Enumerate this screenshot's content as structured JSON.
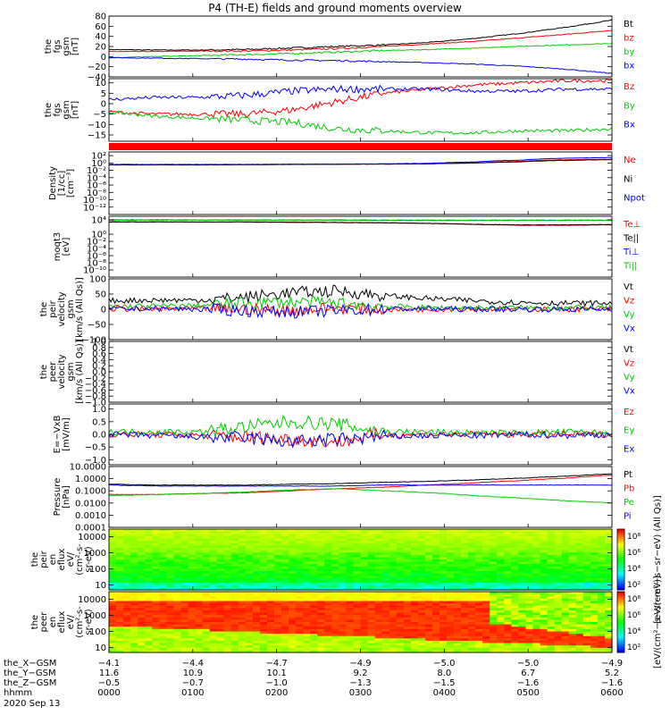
{
  "title": "P4 (TH-E) fields and ground moments overview",
  "colors": {
    "black": "#000000",
    "red": "#ff0000",
    "green": "#00cc00",
    "blue": "#0000ff"
  },
  "chart_data": [
    {
      "id": "fgs-gsm",
      "type": "line",
      "ylabel": [
        "the",
        "fgs",
        "gsm",
        "[nT]"
      ],
      "ylim": [
        -40,
        80
      ],
      "yticks": [
        "80",
        "60",
        "40",
        "20",
        "0",
        "−20",
        "−40"
      ],
      "ytick_values": [
        80,
        60,
        40,
        20,
        0,
        -20,
        -40
      ],
      "series": [
        {
          "name": "Bt",
          "color": "black",
          "values": [
            14,
            13,
            13,
            14,
            17,
            20,
            23,
            28,
            36,
            46,
            58,
            72
          ]
        },
        {
          "name": "bz",
          "color": "red",
          "values": [
            10,
            10,
            11,
            11,
            13,
            16,
            20,
            25,
            30,
            37,
            44,
            52
          ]
        },
        {
          "name": "by",
          "color": "green",
          "values": [
            -2,
            0,
            2,
            4,
            6,
            9,
            12,
            14,
            17,
            20,
            23,
            26
          ]
        },
        {
          "name": "bx",
          "color": "blue",
          "values": [
            -2,
            -3,
            -4,
            -5,
            -7,
            -8,
            -10,
            -12,
            -15,
            -19,
            -25,
            -33
          ]
        }
      ]
    },
    {
      "id": "fgs-gsm-zoom",
      "type": "line",
      "ylabel": [
        "the",
        "fgs",
        "gsm",
        "[nT]"
      ],
      "ylim": [
        -18,
        12
      ],
      "yticks": [
        "10",
        "5",
        "0",
        "−5",
        "−10",
        "−15"
      ],
      "ytick_values": [
        10,
        5,
        0,
        -5,
        -10,
        -15
      ],
      "series": [
        {
          "name": "Bz",
          "color": "red",
          "values": [
            -4,
            -5,
            -5,
            -5,
            -3,
            1,
            5,
            7,
            9,
            10,
            11,
            11
          ]
        },
        {
          "name": "By",
          "color": "green",
          "values": [
            -4,
            -6,
            -7,
            -8,
            -9,
            -12,
            -13,
            -14,
            -14,
            -13,
            -13,
            -12
          ]
        },
        {
          "name": "Bx",
          "color": "blue",
          "values": [
            2,
            3,
            3,
            4,
            6,
            7,
            7,
            7,
            6,
            6,
            7,
            7
          ]
        }
      ]
    },
    {
      "id": "density",
      "type": "line",
      "yscale": "log",
      "ylabel": [
        "Density",
        "[1/cc]",
        "[cm⁻³]"
      ],
      "ylim": [
        1e-14,
        1000.0
      ],
      "yticks": [
        "10²",
        "10⁰",
        "10⁻²",
        "10⁻⁴",
        "10⁻⁶",
        "10⁻⁸",
        "10⁻¹⁰",
        "10⁻¹²"
      ],
      "ytick_values": [
        100,
        1,
        0.01,
        0.0001,
        1e-06,
        1e-08,
        1e-10,
        1e-12
      ],
      "series": [
        {
          "name": "Ne",
          "color": "red",
          "values": [
            0.3,
            0.3,
            0.3,
            0.35,
            0.4,
            0.45,
            0.5,
            0.6,
            1,
            3,
            8,
            10
          ]
        },
        {
          "name": "Ni",
          "color": "black",
          "values": [
            0.3,
            0.3,
            0.3,
            0.35,
            0.4,
            0.45,
            0.5,
            0.6,
            1,
            2,
            5,
            8
          ]
        },
        {
          "name": "Npot",
          "color": "blue",
          "values": [
            0.4,
            0.4,
            0.4,
            0.4,
            0.5,
            0.5,
            0.6,
            0.8,
            2,
            6,
            20,
            30
          ]
        }
      ]
    },
    {
      "id": "temperature",
      "type": "line",
      "yscale": "log",
      "ylabel": [
        "moqt3",
        "[eV]"
      ],
      "ylim": [
        1e-12,
        100000.0
      ],
      "yticks": [
        "10⁴",
        "10⁰",
        "10⁻²",
        "10⁻⁴",
        "10⁻⁶",
        "10⁻⁸",
        "10⁻¹⁰"
      ],
      "ytick_values": [
        10000,
        1,
        0.01,
        0.0001,
        1e-06,
        1e-08,
        1e-10
      ],
      "series": [
        {
          "name": "Te⊥",
          "color": "red",
          "values": [
            3000,
            3000,
            2500,
            3000,
            2500,
            2000,
            1500,
            1000,
            500,
            300,
            300,
            400
          ]
        },
        {
          "name": "Te||",
          "color": "black",
          "values": [
            2500,
            2500,
            2500,
            2500,
            2000,
            1800,
            1500,
            1000,
            600,
            400,
            400,
            500
          ]
        },
        {
          "name": "Ti⊥",
          "color": "blue",
          "values": [
            10000,
            10000,
            9000,
            9000,
            9000,
            9000,
            8000,
            8000,
            8000,
            8000,
            8000,
            8000
          ]
        },
        {
          "name": "Ti||",
          "color": "green",
          "values": [
            8000,
            8000,
            8000,
            8000,
            8000,
            8000,
            7000,
            7000,
            7000,
            7000,
            7000,
            7000
          ]
        }
      ]
    },
    {
      "id": "peir-velocity",
      "type": "line",
      "ylabel": [
        "the",
        "peir",
        "velocity",
        "gsm",
        "[km/s (All Qs)]"
      ],
      "ylim": [
        -100,
        100
      ],
      "yticks": [
        "100",
        "50",
        "0",
        "−50",
        "−100"
      ],
      "ytick_values": [
        100,
        50,
        0,
        -50,
        -100
      ],
      "series": [
        {
          "name": "Vt",
          "color": "black",
          "values": [
            28,
            30,
            30,
            40,
            55,
            60,
            45,
            35,
            28,
            22,
            20,
            20
          ]
        },
        {
          "name": "Vz",
          "color": "red",
          "values": [
            2,
            0,
            2,
            0,
            -3,
            5,
            -2,
            0,
            2,
            0,
            0,
            0
          ]
        },
        {
          "name": "Vy",
          "color": "green",
          "values": [
            10,
            10,
            12,
            20,
            25,
            20,
            10,
            5,
            5,
            5,
            5,
            5
          ]
        },
        {
          "name": "Vx",
          "color": "blue",
          "values": [
            0,
            2,
            0,
            -5,
            -10,
            -5,
            0,
            2,
            0,
            0,
            0,
            0
          ]
        }
      ]
    },
    {
      "id": "peer-velocity",
      "type": "line",
      "ylabel": [
        "the",
        "peer",
        "velocity",
        "gsm",
        "[km/s (All Qs)]"
      ],
      "ylim": [
        -1.0,
        1.0
      ],
      "yticks": [
        "1.0",
        "0.8",
        "0.6",
        "0.4",
        "0.2",
        "0.0",
        "−0.2",
        "−0.4",
        "−0.6",
        "−0.8",
        "−1.0"
      ],
      "ytick_values": [
        1.0,
        0.8,
        0.6,
        0.4,
        0.2,
        0.0,
        -0.2,
        -0.4,
        -0.6,
        -0.8,
        -1.0
      ],
      "series": [
        {
          "name": "Vt",
          "color": "black",
          "values": []
        },
        {
          "name": "Vz",
          "color": "red",
          "values": []
        },
        {
          "name": "Vy",
          "color": "green",
          "values": []
        },
        {
          "name": "Vx",
          "color": "blue",
          "values": []
        }
      ]
    },
    {
      "id": "efield",
      "type": "line",
      "ylabel": [
        "E=−VxB",
        "[mV/m]"
      ],
      "ylim": [
        -1.2,
        1.2
      ],
      "yticks": [
        "1.0",
        "0.5",
        "0.0",
        "−0.5",
        "−1.0"
      ],
      "ytick_values": [
        1.0,
        0.5,
        0.0,
        -0.5,
        -1.0
      ],
      "series": [
        {
          "name": "Ez",
          "color": "red",
          "values": [
            0,
            0,
            -0.05,
            -0.1,
            -0.2,
            -0.3,
            0.0,
            0.0,
            0.0,
            0.0,
            0.0,
            0.0
          ]
        },
        {
          "name": "Ey",
          "color": "green",
          "values": [
            0.1,
            0.1,
            0.1,
            0.3,
            0.5,
            0.4,
            0.1,
            0.1,
            0.05,
            0.05,
            0.1,
            0.05
          ]
        },
        {
          "name": "Ex",
          "color": "blue",
          "values": [
            0,
            -0.05,
            -0.1,
            -0.15,
            -0.3,
            -0.2,
            -0.1,
            -0.05,
            -0.05,
            0,
            -0.05,
            0
          ]
        }
      ]
    },
    {
      "id": "pressure",
      "type": "line",
      "yscale": "log",
      "ylabel": [
        "Pressure",
        "[nPa]"
      ],
      "ylim": [
        0.0001,
        10
      ],
      "yticks": [
        "10.0000",
        "1.0000",
        "0.1000",
        "0.0100",
        "0.0010",
        "0.0001"
      ],
      "ytick_values": [
        10,
        1,
        0.1,
        0.01,
        0.001,
        0.0001
      ],
      "series": [
        {
          "name": "Pt",
          "color": "black",
          "values": [
            0.35,
            0.3,
            0.3,
            0.3,
            0.35,
            0.4,
            0.5,
            0.6,
            0.8,
            1.1,
            1.6,
            2.5
          ]
        },
        {
          "name": "Pb",
          "color": "red",
          "values": [
            0.05,
            0.05,
            0.06,
            0.07,
            0.1,
            0.15,
            0.2,
            0.3,
            0.45,
            0.7,
            1.1,
            2.0
          ]
        },
        {
          "name": "Pe",
          "color": "green",
          "values": [
            0.04,
            0.05,
            0.06,
            0.08,
            0.12,
            0.15,
            0.1,
            0.07,
            0.04,
            0.025,
            0.015,
            0.01
          ]
        },
        {
          "name": "Pi",
          "color": "blue",
          "values": [
            0.3,
            0.25,
            0.25,
            0.25,
            0.25,
            0.25,
            0.3,
            0.3,
            0.3,
            0.3,
            0.3,
            0.3
          ]
        }
      ]
    },
    {
      "id": "peir-en-eflux",
      "type": "heatmap",
      "yscale": "log",
      "ylabel": [
        "the",
        "peir",
        "en",
        "eflux",
        "eV/",
        "(cm²-s-",
        "sr-eV)"
      ],
      "ylim": [
        5,
        30000
      ],
      "yticks": [
        "10000",
        "1000",
        "100",
        "10"
      ],
      "ytick_values": [
        10000,
        1000,
        100,
        10
      ],
      "colorbar": {
        "label": "[eV/(cm²−s−sr−eV) (All Qs)]",
        "ticks": [
          "10⁸",
          "10⁶",
          "10⁴",
          "10²"
        ]
      }
    },
    {
      "id": "peer-en-eflux",
      "type": "heatmap",
      "yscale": "log",
      "ylabel": [
        "the",
        "peer",
        "en",
        "eflux",
        "eV/",
        "(cm²-s-",
        "sr-eV)"
      ],
      "ylim": [
        5,
        30000
      ],
      "yticks": [
        "10000",
        "1000",
        "100",
        "10"
      ],
      "ytick_values": [
        10000,
        1000,
        100,
        10
      ],
      "colorbar": {
        "label": "[eV/(cm²−s−sr−eV)]",
        "ticks": [
          "10⁸",
          "10⁶",
          "10⁴",
          "10²"
        ]
      }
    }
  ],
  "xaxis": {
    "row_labels": [
      "the_X−GSM",
      "the_Y−GSM",
      "the_Z−GSM",
      "hhmm",
      "2020 Sep 13"
    ],
    "columns": [
      [
        "−4.1",
        "11.6",
        "−0.5",
        "0000"
      ],
      [
        "−4.4",
        "10.9",
        "−0.7",
        "0100"
      ],
      [
        "−4.7",
        "10.1",
        "−1.0",
        "0200"
      ],
      [
        "−4.9",
        "9.2",
        "−1.3",
        "0300"
      ],
      [
        "−5.0",
        "8.0",
        "−1.5",
        "0400"
      ],
      [
        "−5.0",
        "6.7",
        "−1.6",
        "0500"
      ],
      [
        "−4.9",
        "5.2",
        "−1.6",
        "0600"
      ]
    ]
  }
}
